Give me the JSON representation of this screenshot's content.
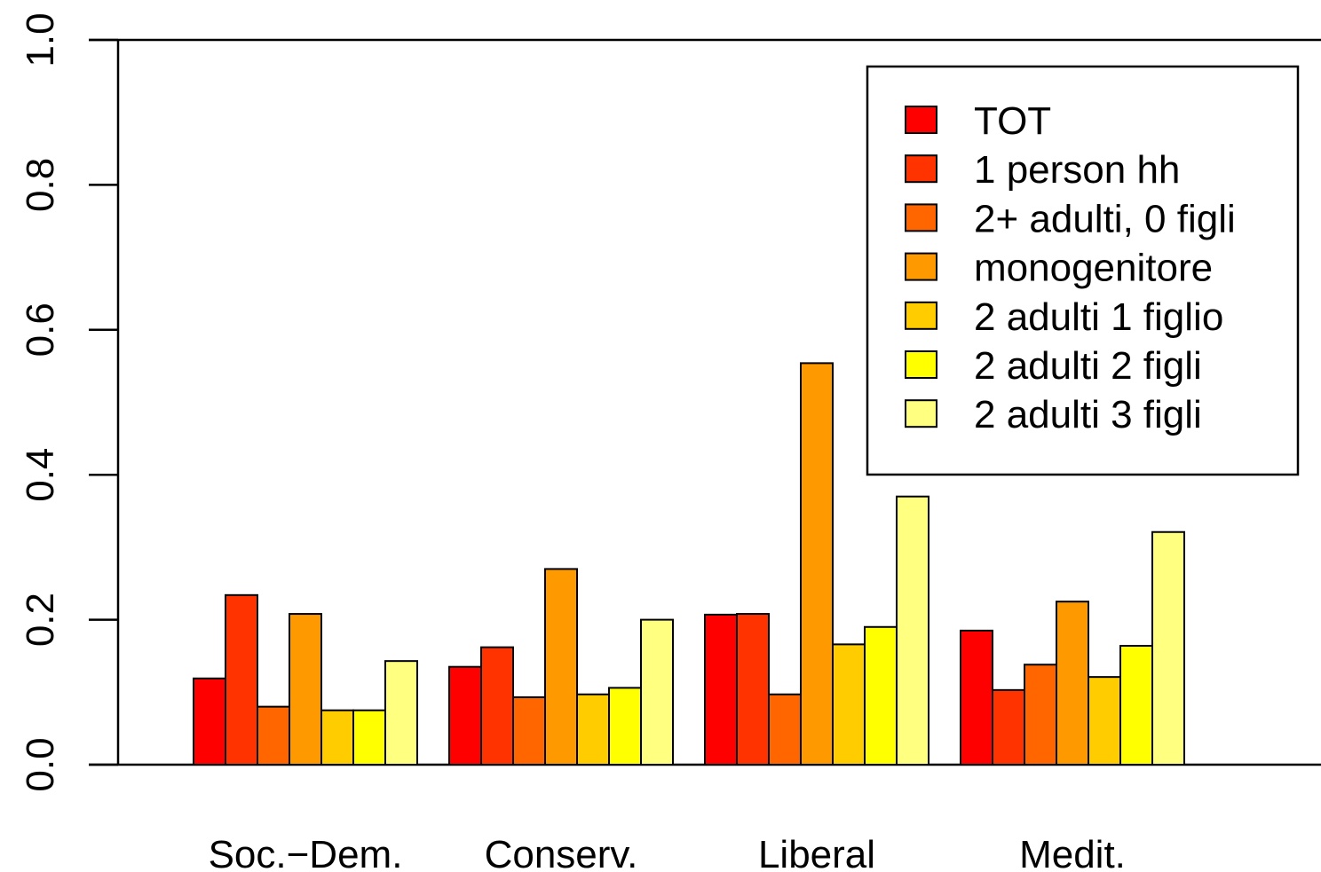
{
  "chart_data": {
    "type": "bar",
    "categories": [
      "Soc.−Dem.",
      "Conserv.",
      "Liberal",
      "Medit."
    ],
    "series": [
      {
        "name": "TOT",
        "color": "#FF0000",
        "values": [
          0.119,
          0.135,
          0.207,
          0.185
        ]
      },
      {
        "name": "1 person hh",
        "color": "#FF3300",
        "values": [
          0.234,
          0.162,
          0.208,
          0.103
        ]
      },
      {
        "name": "2+ adulti, 0 figli",
        "color": "#FF6600",
        "values": [
          0.08,
          0.093,
          0.097,
          0.138
        ]
      },
      {
        "name": "monogenitore",
        "color": "#FF9900",
        "values": [
          0.208,
          0.27,
          0.554,
          0.225
        ]
      },
      {
        "name": "2 adulti 1 figlio",
        "color": "#FFCC00",
        "values": [
          0.075,
          0.097,
          0.166,
          0.121
        ]
      },
      {
        "name": "2 adulti 2 figli",
        "color": "#FFFF00",
        "values": [
          0.075,
          0.106,
          0.19,
          0.164
        ]
      },
      {
        "name": "2 adulti 3 figli",
        "color": "#FFFF80",
        "values": [
          0.143,
          0.2,
          0.37,
          0.321
        ]
      }
    ],
    "ylim": [
      0,
      1
    ],
    "yticks": [
      {
        "value": 0,
        "label": "0.0"
      },
      0.2,
      0.4,
      0.6,
      0.8,
      {
        "value": 1,
        "label": "1.0"
      }
    ],
    "legend": "top-right"
  }
}
